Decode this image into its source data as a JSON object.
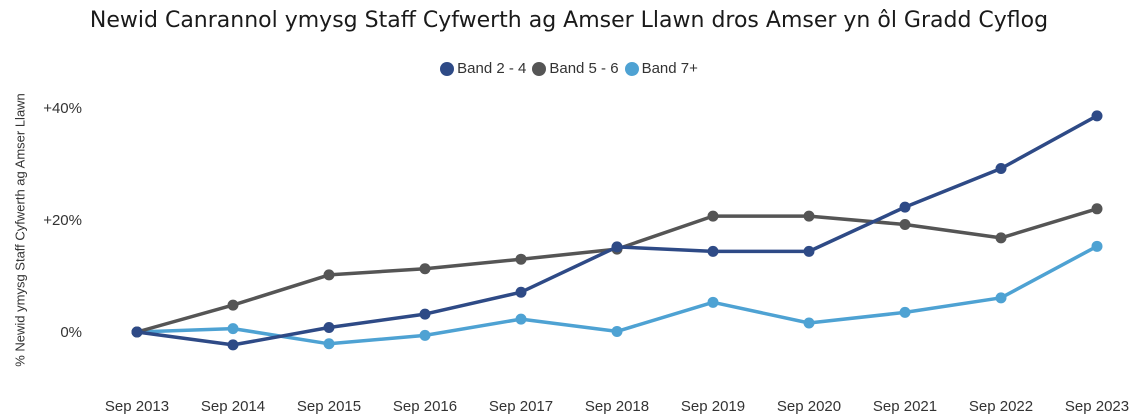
{
  "chart_data": {
    "type": "line",
    "title": "Newid Canrannol ymysg Staff Cyfwerth ag Amser Llawn dros Amser yn ôl Gradd Cyflog",
    "xlabel": "",
    "ylabel": "% Newid ymysg Staff Cyfwerth ag Amser Llawn",
    "categories": [
      "Sep 2013",
      "Sep 2014",
      "Sep 2015",
      "Sep 2016",
      "Sep 2017",
      "Sep 2018",
      "Sep 2019",
      "Sep 2020",
      "Sep 2021",
      "Sep 2022",
      "Sep 2023"
    ],
    "yticks": [
      {
        "v": 0,
        "label": "0%"
      },
      {
        "v": 20,
        "label": "+20%"
      },
      {
        "v": 40,
        "label": "+40%"
      }
    ],
    "ylim": [
      -10,
      50
    ],
    "legend_position": "top-center",
    "grid": false,
    "series": [
      {
        "name": "Band 2 - 4",
        "color": "#2e4a86",
        "values": [
          0,
          -2.3,
          0.8,
          3.2,
          7.1,
          15.2,
          14.4,
          14.4,
          22.3,
          29.2,
          38.6
        ]
      },
      {
        "name": "Band 5 - 6",
        "color": "#555555",
        "values": [
          0,
          4.8,
          10.2,
          11.3,
          13.0,
          14.8,
          20.7,
          20.7,
          19.2,
          16.8,
          22.0
        ]
      },
      {
        "name": "Band 7+",
        "color": "#4ea2d3",
        "values": [
          0,
          0.6,
          -2.1,
          -0.6,
          2.3,
          0.1,
          5.3,
          1.6,
          3.5,
          6.1,
          15.3
        ]
      }
    ]
  }
}
